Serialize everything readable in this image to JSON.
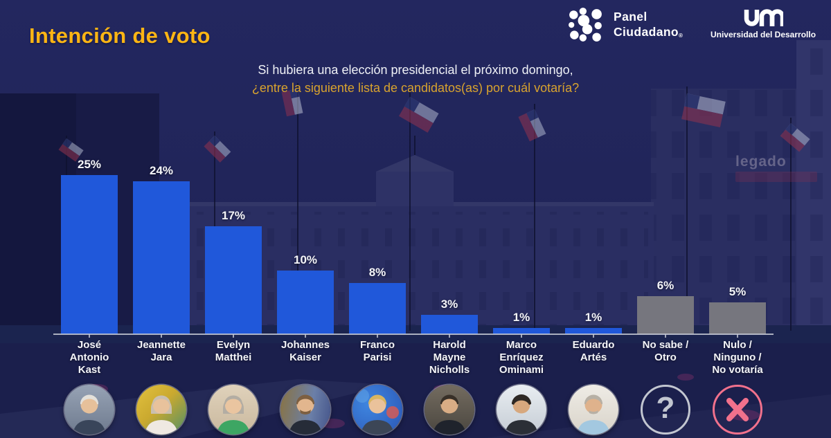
{
  "header": {
    "title": "Intención de voto",
    "panel_logo": {
      "line1": "Panel",
      "line2": "Ciudadano",
      "registered_mark": "®"
    },
    "udd_logo": {
      "acronym": "UDD",
      "name": "Universidad del Desarrollo"
    }
  },
  "question": {
    "line1": "Si hubiera una elección presidencial el próximo domingo,",
    "line2": "¿entre la siguiente lista de candidatos(as) por cuál votaría?"
  },
  "background": {
    "banner_text": "legado"
  },
  "chart_data": {
    "type": "bar",
    "title": "Intención de voto",
    "categories": [
      "José Antonio Kast",
      "Jeannette Jara",
      "Evelyn Matthei",
      "Johannes Kaiser",
      "Franco Parisi",
      "Harold Mayne Nicholls",
      "Marco Enríquez Ominami",
      "Eduardo Artés",
      "No sabe / Otro",
      "Nulo / Ninguno / No votaría"
    ],
    "values": [
      25,
      24,
      17,
      10,
      8,
      3,
      1,
      1,
      6,
      5
    ],
    "value_labels": [
      "25%",
      "24%",
      "17%",
      "10%",
      "8%",
      "3%",
      "1%",
      "1%",
      "6%",
      "5%"
    ],
    "display_labels": [
      "José\nAntonio\nKast",
      "Jeannette\nJara",
      "Evelyn\nMatthei",
      "Johannes\nKaiser",
      "Franco\nParisi",
      "Harold\nMayne\nNicholls",
      "Marco\nEnríquez\nOminami",
      "Eduardo\nArtés",
      "No sabe /\nOtro",
      "Nulo /\nNinguno /\nNo votaría"
    ],
    "bar_colors": [
      "#2058DA",
      "#2058DA",
      "#2058DA",
      "#2058DA",
      "#2058DA",
      "#2058DA",
      "#2058DA",
      "#2058DA",
      "#76767E",
      "#76767E"
    ],
    "unit": "%",
    "xlabel": "",
    "ylabel": "",
    "ylim": [
      0,
      27
    ],
    "grid": false,
    "legend": false
  },
  "footer": {
    "unknown_symbol": "?",
    "reject_symbol": "✕"
  },
  "colors": {
    "background_navy": "#20245A",
    "bar_blue": "#2058DA",
    "bar_gray": "#76767E",
    "title_yellow": "#FCB514",
    "question_yellow": "#D9A32E",
    "axis_gray": "#C6C9D4",
    "text_white": "#F4F5F9",
    "unknown_gray": "#C2C6D0",
    "reject_pink": "#F1718C"
  }
}
